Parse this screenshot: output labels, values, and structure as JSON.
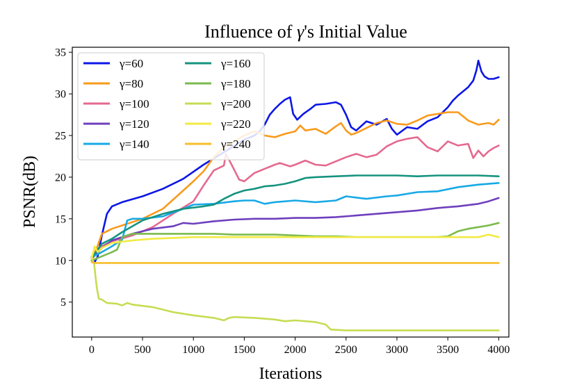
{
  "chart_data": {
    "type": "line",
    "title_prefix": "Influence of ",
    "title_symbol": "γ",
    "title_suffix": "'s Initial Value",
    "xlabel": "Iterations",
    "ylabel": "PSNR(dB)",
    "xlim": [
      -190,
      4100
    ],
    "ylim": [
      0.8,
      35.6
    ],
    "xticks": [
      0,
      500,
      1000,
      1500,
      2000,
      2500,
      3000,
      3500,
      4000
    ],
    "yticks": [
      5,
      10,
      15,
      20,
      25,
      30,
      35
    ],
    "legend_position": "upper-left",
    "series": [
      {
        "name": "γ=60",
        "color": "#0c16e6",
        "points": [
          [
            0,
            10.2
          ],
          [
            30,
            9.8
          ],
          [
            60,
            10.5
          ],
          [
            100,
            13
          ],
          [
            150,
            15.6
          ],
          [
            200,
            16.5
          ],
          [
            300,
            17
          ],
          [
            500,
            17.7
          ],
          [
            700,
            18.6
          ],
          [
            900,
            19.8
          ],
          [
            1100,
            21.5
          ],
          [
            1300,
            23
          ],
          [
            1500,
            24.5
          ],
          [
            1600,
            25
          ],
          [
            1650,
            25.5
          ],
          [
            1700,
            26.3
          ],
          [
            1750,
            27.5
          ],
          [
            1800,
            28.2
          ],
          [
            1850,
            28.8
          ],
          [
            1900,
            29.3
          ],
          [
            1950,
            29.6
          ],
          [
            1980,
            27.6
          ],
          [
            2020,
            26.9
          ],
          [
            2080,
            27.6
          ],
          [
            2150,
            28.2
          ],
          [
            2200,
            28.7
          ],
          [
            2300,
            28.8
          ],
          [
            2400,
            29
          ],
          [
            2450,
            28.7
          ],
          [
            2500,
            27.5
          ],
          [
            2550,
            26
          ],
          [
            2600,
            25.6
          ],
          [
            2700,
            26.7
          ],
          [
            2800,
            26.3
          ],
          [
            2900,
            27
          ],
          [
            2950,
            25.8
          ],
          [
            3000,
            25.1
          ],
          [
            3100,
            26
          ],
          [
            3200,
            25.8
          ],
          [
            3300,
            26.7
          ],
          [
            3400,
            27.2
          ],
          [
            3500,
            28.4
          ],
          [
            3550,
            29.2
          ],
          [
            3600,
            29.8
          ],
          [
            3700,
            30.8
          ],
          [
            3750,
            31.6
          ],
          [
            3780,
            32.8
          ],
          [
            3800,
            34
          ],
          [
            3830,
            32.7
          ],
          [
            3860,
            32.1
          ],
          [
            3900,
            31.8
          ],
          [
            3950,
            31.8
          ],
          [
            4000,
            32
          ]
        ]
      },
      {
        "name": "γ=80",
        "color": "#f99a1b",
        "points": [
          [
            0,
            10
          ],
          [
            60,
            11.8
          ],
          [
            100,
            13.2
          ],
          [
            200,
            13.8
          ],
          [
            300,
            14.2
          ],
          [
            500,
            15
          ],
          [
            700,
            16.2
          ],
          [
            900,
            18.4
          ],
          [
            1000,
            19.5
          ],
          [
            1100,
            20.7
          ],
          [
            1200,
            22.4
          ],
          [
            1300,
            23.6
          ],
          [
            1400,
            24.3
          ],
          [
            1500,
            25
          ],
          [
            1600,
            25.5
          ],
          [
            1700,
            25
          ],
          [
            1800,
            24.8
          ],
          [
            1900,
            25.2
          ],
          [
            2000,
            25.5
          ],
          [
            2050,
            26.2
          ],
          [
            2100,
            25.6
          ],
          [
            2200,
            25.8
          ],
          [
            2300,
            25.2
          ],
          [
            2400,
            26.1
          ],
          [
            2450,
            26.5
          ],
          [
            2500,
            25.6
          ],
          [
            2550,
            25.1
          ],
          [
            2600,
            25.3
          ],
          [
            2700,
            25.9
          ],
          [
            2800,
            26.5
          ],
          [
            2900,
            26.8
          ],
          [
            3000,
            26.4
          ],
          [
            3100,
            26.3
          ],
          [
            3200,
            26.8
          ],
          [
            3300,
            27.4
          ],
          [
            3400,
            27.6
          ],
          [
            3500,
            27.8
          ],
          [
            3600,
            27.8
          ],
          [
            3700,
            26.8
          ],
          [
            3800,
            26.3
          ],
          [
            3900,
            26.5
          ],
          [
            3950,
            26.3
          ],
          [
            4000,
            26.9
          ]
        ]
      },
      {
        "name": "γ=100",
        "color": "#e5698f",
        "points": [
          [
            0,
            10.3
          ],
          [
            60,
            11.2
          ],
          [
            100,
            11.7
          ],
          [
            200,
            12.3
          ],
          [
            400,
            13
          ],
          [
            600,
            14
          ],
          [
            800,
            15.6
          ],
          [
            1000,
            17.1
          ],
          [
            1100,
            19
          ],
          [
            1200,
            20.8
          ],
          [
            1300,
            21.4
          ],
          [
            1320,
            22.8
          ],
          [
            1380,
            21.4
          ],
          [
            1450,
            19.7
          ],
          [
            1500,
            19.5
          ],
          [
            1600,
            20.5
          ],
          [
            1700,
            21
          ],
          [
            1800,
            21.5
          ],
          [
            1850,
            21.7
          ],
          [
            1950,
            21.3
          ],
          [
            2000,
            21.5
          ],
          [
            2100,
            22
          ],
          [
            2200,
            21.5
          ],
          [
            2300,
            21.4
          ],
          [
            2400,
            21.9
          ],
          [
            2500,
            22.4
          ],
          [
            2600,
            22.8
          ],
          [
            2700,
            22.4
          ],
          [
            2800,
            22.7
          ],
          [
            2900,
            23.7
          ],
          [
            3000,
            24.3
          ],
          [
            3100,
            24.6
          ],
          [
            3200,
            24.8
          ],
          [
            3300,
            23.6
          ],
          [
            3400,
            23.1
          ],
          [
            3500,
            24.3
          ],
          [
            3600,
            23.8
          ],
          [
            3700,
            24
          ],
          [
            3750,
            22.3
          ],
          [
            3800,
            23.2
          ],
          [
            3850,
            22.5
          ],
          [
            3900,
            23.1
          ],
          [
            3950,
            23.5
          ],
          [
            4000,
            23.8
          ]
        ]
      },
      {
        "name": "γ=120",
        "color": "#6e3fbd",
        "points": [
          [
            0,
            10.2
          ],
          [
            100,
            11.5
          ],
          [
            200,
            12.4
          ],
          [
            400,
            13.2
          ],
          [
            600,
            13.8
          ],
          [
            800,
            14.1
          ],
          [
            900,
            14.5
          ],
          [
            1000,
            14.4
          ],
          [
            1200,
            14.7
          ],
          [
            1400,
            14.9
          ],
          [
            1600,
            15
          ],
          [
            1800,
            15
          ],
          [
            2000,
            15.1
          ],
          [
            2200,
            15.1
          ],
          [
            2400,
            15.2
          ],
          [
            2600,
            15.4
          ],
          [
            2800,
            15.6
          ],
          [
            3000,
            15.8
          ],
          [
            3200,
            16
          ],
          [
            3400,
            16.3
          ],
          [
            3600,
            16.5
          ],
          [
            3800,
            16.8
          ],
          [
            3900,
            17.1
          ],
          [
            4000,
            17.5
          ]
        ]
      },
      {
        "name": "γ=140",
        "color": "#17a9e6",
        "points": [
          [
            0,
            10.4
          ],
          [
            100,
            11
          ],
          [
            200,
            11.7
          ],
          [
            300,
            12.5
          ],
          [
            350,
            14.8
          ],
          [
            400,
            15
          ],
          [
            500,
            15
          ],
          [
            700,
            15.3
          ],
          [
            900,
            16.2
          ],
          [
            1000,
            16.7
          ],
          [
            1200,
            16.8
          ],
          [
            1400,
            17.1
          ],
          [
            1500,
            17.2
          ],
          [
            1600,
            17.2
          ],
          [
            1700,
            16.8
          ],
          [
            1800,
            17
          ],
          [
            2000,
            17.2
          ],
          [
            2200,
            17
          ],
          [
            2400,
            17.2
          ],
          [
            2500,
            17.7
          ],
          [
            2700,
            17.4
          ],
          [
            2900,
            17.7
          ],
          [
            3000,
            17.8
          ],
          [
            3200,
            18.2
          ],
          [
            3400,
            18.3
          ],
          [
            3600,
            18.8
          ],
          [
            3800,
            19.1
          ],
          [
            4000,
            19.3
          ]
        ]
      },
      {
        "name": "γ=160",
        "color": "#15937f",
        "points": [
          [
            0,
            10.3
          ],
          [
            100,
            12
          ],
          [
            200,
            12.6
          ],
          [
            300,
            13.4
          ],
          [
            500,
            14.8
          ],
          [
            700,
            15.6
          ],
          [
            900,
            16.2
          ],
          [
            1100,
            16.5
          ],
          [
            1200,
            16.7
          ],
          [
            1300,
            17.4
          ],
          [
            1400,
            18
          ],
          [
            1500,
            18.4
          ],
          [
            1600,
            18.6
          ],
          [
            1700,
            18.9
          ],
          [
            1800,
            19
          ],
          [
            1900,
            19.2
          ],
          [
            2000,
            19.5
          ],
          [
            2100,
            19.9
          ],
          [
            2200,
            20
          ],
          [
            2400,
            20.1
          ],
          [
            2600,
            20.2
          ],
          [
            2800,
            20.2
          ],
          [
            3000,
            20.2
          ],
          [
            3200,
            20.1
          ],
          [
            3400,
            20.2
          ],
          [
            3600,
            20.2
          ],
          [
            3800,
            20.2
          ],
          [
            4000,
            20.1
          ]
        ]
      },
      {
        "name": "γ=180",
        "color": "#7bba4c",
        "points": [
          [
            0,
            10
          ],
          [
            100,
            10.5
          ],
          [
            200,
            11
          ],
          [
            250,
            11.3
          ],
          [
            300,
            12.8
          ],
          [
            400,
            13.2
          ],
          [
            600,
            13.2
          ],
          [
            800,
            13.2
          ],
          [
            1000,
            13.2
          ],
          [
            1200,
            13.2
          ],
          [
            1400,
            13.1
          ],
          [
            1600,
            13.1
          ],
          [
            1800,
            13.1
          ],
          [
            2000,
            13
          ],
          [
            2200,
            12.9
          ],
          [
            2400,
            12.9
          ],
          [
            2600,
            12.8
          ],
          [
            2800,
            12.8
          ],
          [
            3000,
            12.8
          ],
          [
            3200,
            12.8
          ],
          [
            3400,
            12.8
          ],
          [
            3500,
            12.9
          ],
          [
            3600,
            13.5
          ],
          [
            3700,
            13.8
          ],
          [
            3800,
            14
          ],
          [
            3900,
            14.2
          ],
          [
            4000,
            14.5
          ]
        ]
      },
      {
        "name": "γ=200",
        "color": "#c5dd53",
        "points": [
          [
            0,
            10.5
          ],
          [
            25,
            9.5
          ],
          [
            50,
            6.8
          ],
          [
            70,
            5.4
          ],
          [
            100,
            5.3
          ],
          [
            150,
            4.9
          ],
          [
            250,
            4.8
          ],
          [
            300,
            4.6
          ],
          [
            350,
            4.9
          ],
          [
            400,
            4.7
          ],
          [
            600,
            4.4
          ],
          [
            800,
            3.8
          ],
          [
            1000,
            3.4
          ],
          [
            1200,
            3.1
          ],
          [
            1300,
            2.8
          ],
          [
            1350,
            3.1
          ],
          [
            1400,
            3.2
          ],
          [
            1600,
            3.1
          ],
          [
            1800,
            2.9
          ],
          [
            1900,
            2.7
          ],
          [
            2000,
            2.8
          ],
          [
            2200,
            2.6
          ],
          [
            2300,
            2.3
          ],
          [
            2350,
            1.7
          ],
          [
            2500,
            1.6
          ],
          [
            3000,
            1.6
          ],
          [
            3500,
            1.6
          ],
          [
            4000,
            1.6
          ]
        ]
      },
      {
        "name": "γ=220",
        "color": "#f2ea42",
        "points": [
          [
            0,
            10.2
          ],
          [
            30,
            11.7
          ],
          [
            60,
            11
          ],
          [
            100,
            11.5
          ],
          [
            200,
            12.1
          ],
          [
            400,
            12.4
          ],
          [
            600,
            12.6
          ],
          [
            800,
            12.7
          ],
          [
            1000,
            12.8
          ],
          [
            1500,
            12.8
          ],
          [
            2000,
            12.8
          ],
          [
            2500,
            12.8
          ],
          [
            3000,
            12.8
          ],
          [
            3500,
            12.8
          ],
          [
            3800,
            12.8
          ],
          [
            3900,
            13.1
          ],
          [
            4000,
            12.8
          ]
        ]
      },
      {
        "name": "γ=240",
        "color": "#f7be2a",
        "points": [
          [
            0,
            9.8
          ],
          [
            30,
            9.7
          ],
          [
            100,
            9.7
          ],
          [
            500,
            9.7
          ],
          [
            1000,
            9.7
          ],
          [
            1500,
            9.7
          ],
          [
            2000,
            9.7
          ],
          [
            2500,
            9.7
          ],
          [
            3000,
            9.7
          ],
          [
            3500,
            9.7
          ],
          [
            4000,
            9.7
          ]
        ]
      }
    ]
  }
}
